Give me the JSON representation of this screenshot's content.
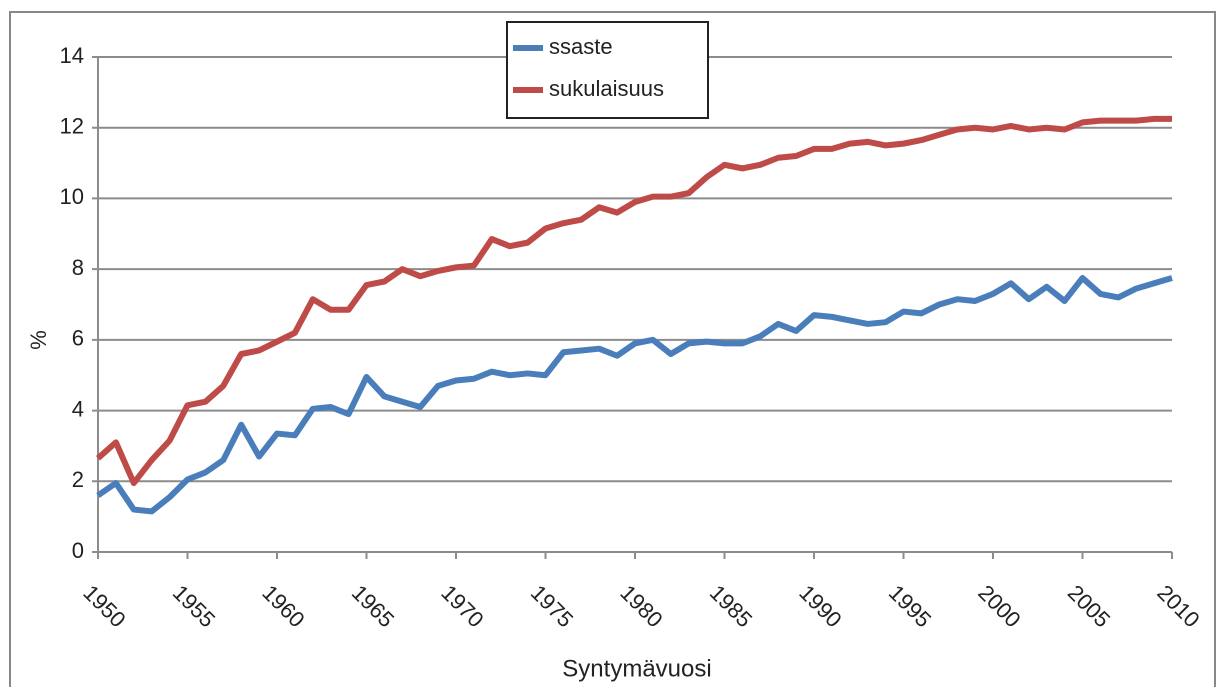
{
  "chart_data": {
    "type": "line",
    "x_label": "Syntymävuosi",
    "y_label": "%",
    "x": [
      1950,
      1951,
      1952,
      1953,
      1954,
      1955,
      1956,
      1957,
      1958,
      1959,
      1960,
      1961,
      1962,
      1963,
      1964,
      1965,
      1966,
      1967,
      1968,
      1969,
      1970,
      1971,
      1972,
      1973,
      1974,
      1975,
      1976,
      1977,
      1978,
      1979,
      1980,
      1981,
      1982,
      1983,
      1984,
      1985,
      1986,
      1987,
      1988,
      1989,
      1990,
      1991,
      1992,
      1993,
      1994,
      1995,
      1996,
      1997,
      1998,
      1999,
      2000,
      2001,
      2002,
      2003,
      2004,
      2005,
      2006,
      2007,
      2008,
      2009,
      2010
    ],
    "series": [
      {
        "name": "ssaste",
        "color": "#4a7ebb",
        "values": [
          1.6,
          1.95,
          1.2,
          1.15,
          1.55,
          2.05,
          2.25,
          2.6,
          3.6,
          2.7,
          3.35,
          3.3,
          4.05,
          4.1,
          3.9,
          4.95,
          4.4,
          4.25,
          4.1,
          4.7,
          4.85,
          4.9,
          5.1,
          5.0,
          5.05,
          5.0,
          5.65,
          5.7,
          5.75,
          5.55,
          5.9,
          6.0,
          5.6,
          5.9,
          5.95,
          5.9,
          5.9,
          6.1,
          6.45,
          6.25,
          6.7,
          6.65,
          6.55,
          6.45,
          6.5,
          6.8,
          6.75,
          7.0,
          7.15,
          7.1,
          7.3,
          7.6,
          7.15,
          7.5,
          7.1,
          7.75,
          7.3,
          7.2,
          7.45,
          7.6,
          7.75
        ]
      },
      {
        "name": "sukulaisuus",
        "color": "#be4b48",
        "values": [
          2.65,
          3.1,
          1.95,
          2.6,
          3.15,
          4.15,
          4.25,
          4.7,
          5.6,
          5.7,
          5.95,
          6.2,
          7.15,
          6.85,
          6.85,
          7.55,
          7.65,
          8.0,
          7.8,
          7.95,
          8.05,
          8.1,
          8.85,
          8.65,
          8.75,
          9.15,
          9.3,
          9.4,
          9.75,
          9.6,
          9.9,
          10.05,
          10.05,
          10.15,
          10.6,
          10.95,
          10.85,
          10.95,
          11.15,
          11.2,
          11.4,
          11.4,
          11.55,
          11.6,
          11.5,
          11.55,
          11.65,
          11.8,
          11.95,
          12.0,
          11.95,
          12.05,
          11.95,
          12.0,
          11.95,
          12.15,
          12.2,
          12.2,
          12.2,
          12.25,
          12.25
        ]
      }
    ],
    "xlim": [
      1950,
      2010
    ],
    "xticks": [
      1950,
      1955,
      1960,
      1965,
      1970,
      1975,
      1980,
      1985,
      1990,
      1995,
      2000,
      2005,
      2010
    ],
    "ylim": [
      0,
      14
    ],
    "yticks": [
      0,
      2,
      4,
      6,
      8,
      10,
      12,
      14
    ],
    "grid": true,
    "legend": "top"
  }
}
